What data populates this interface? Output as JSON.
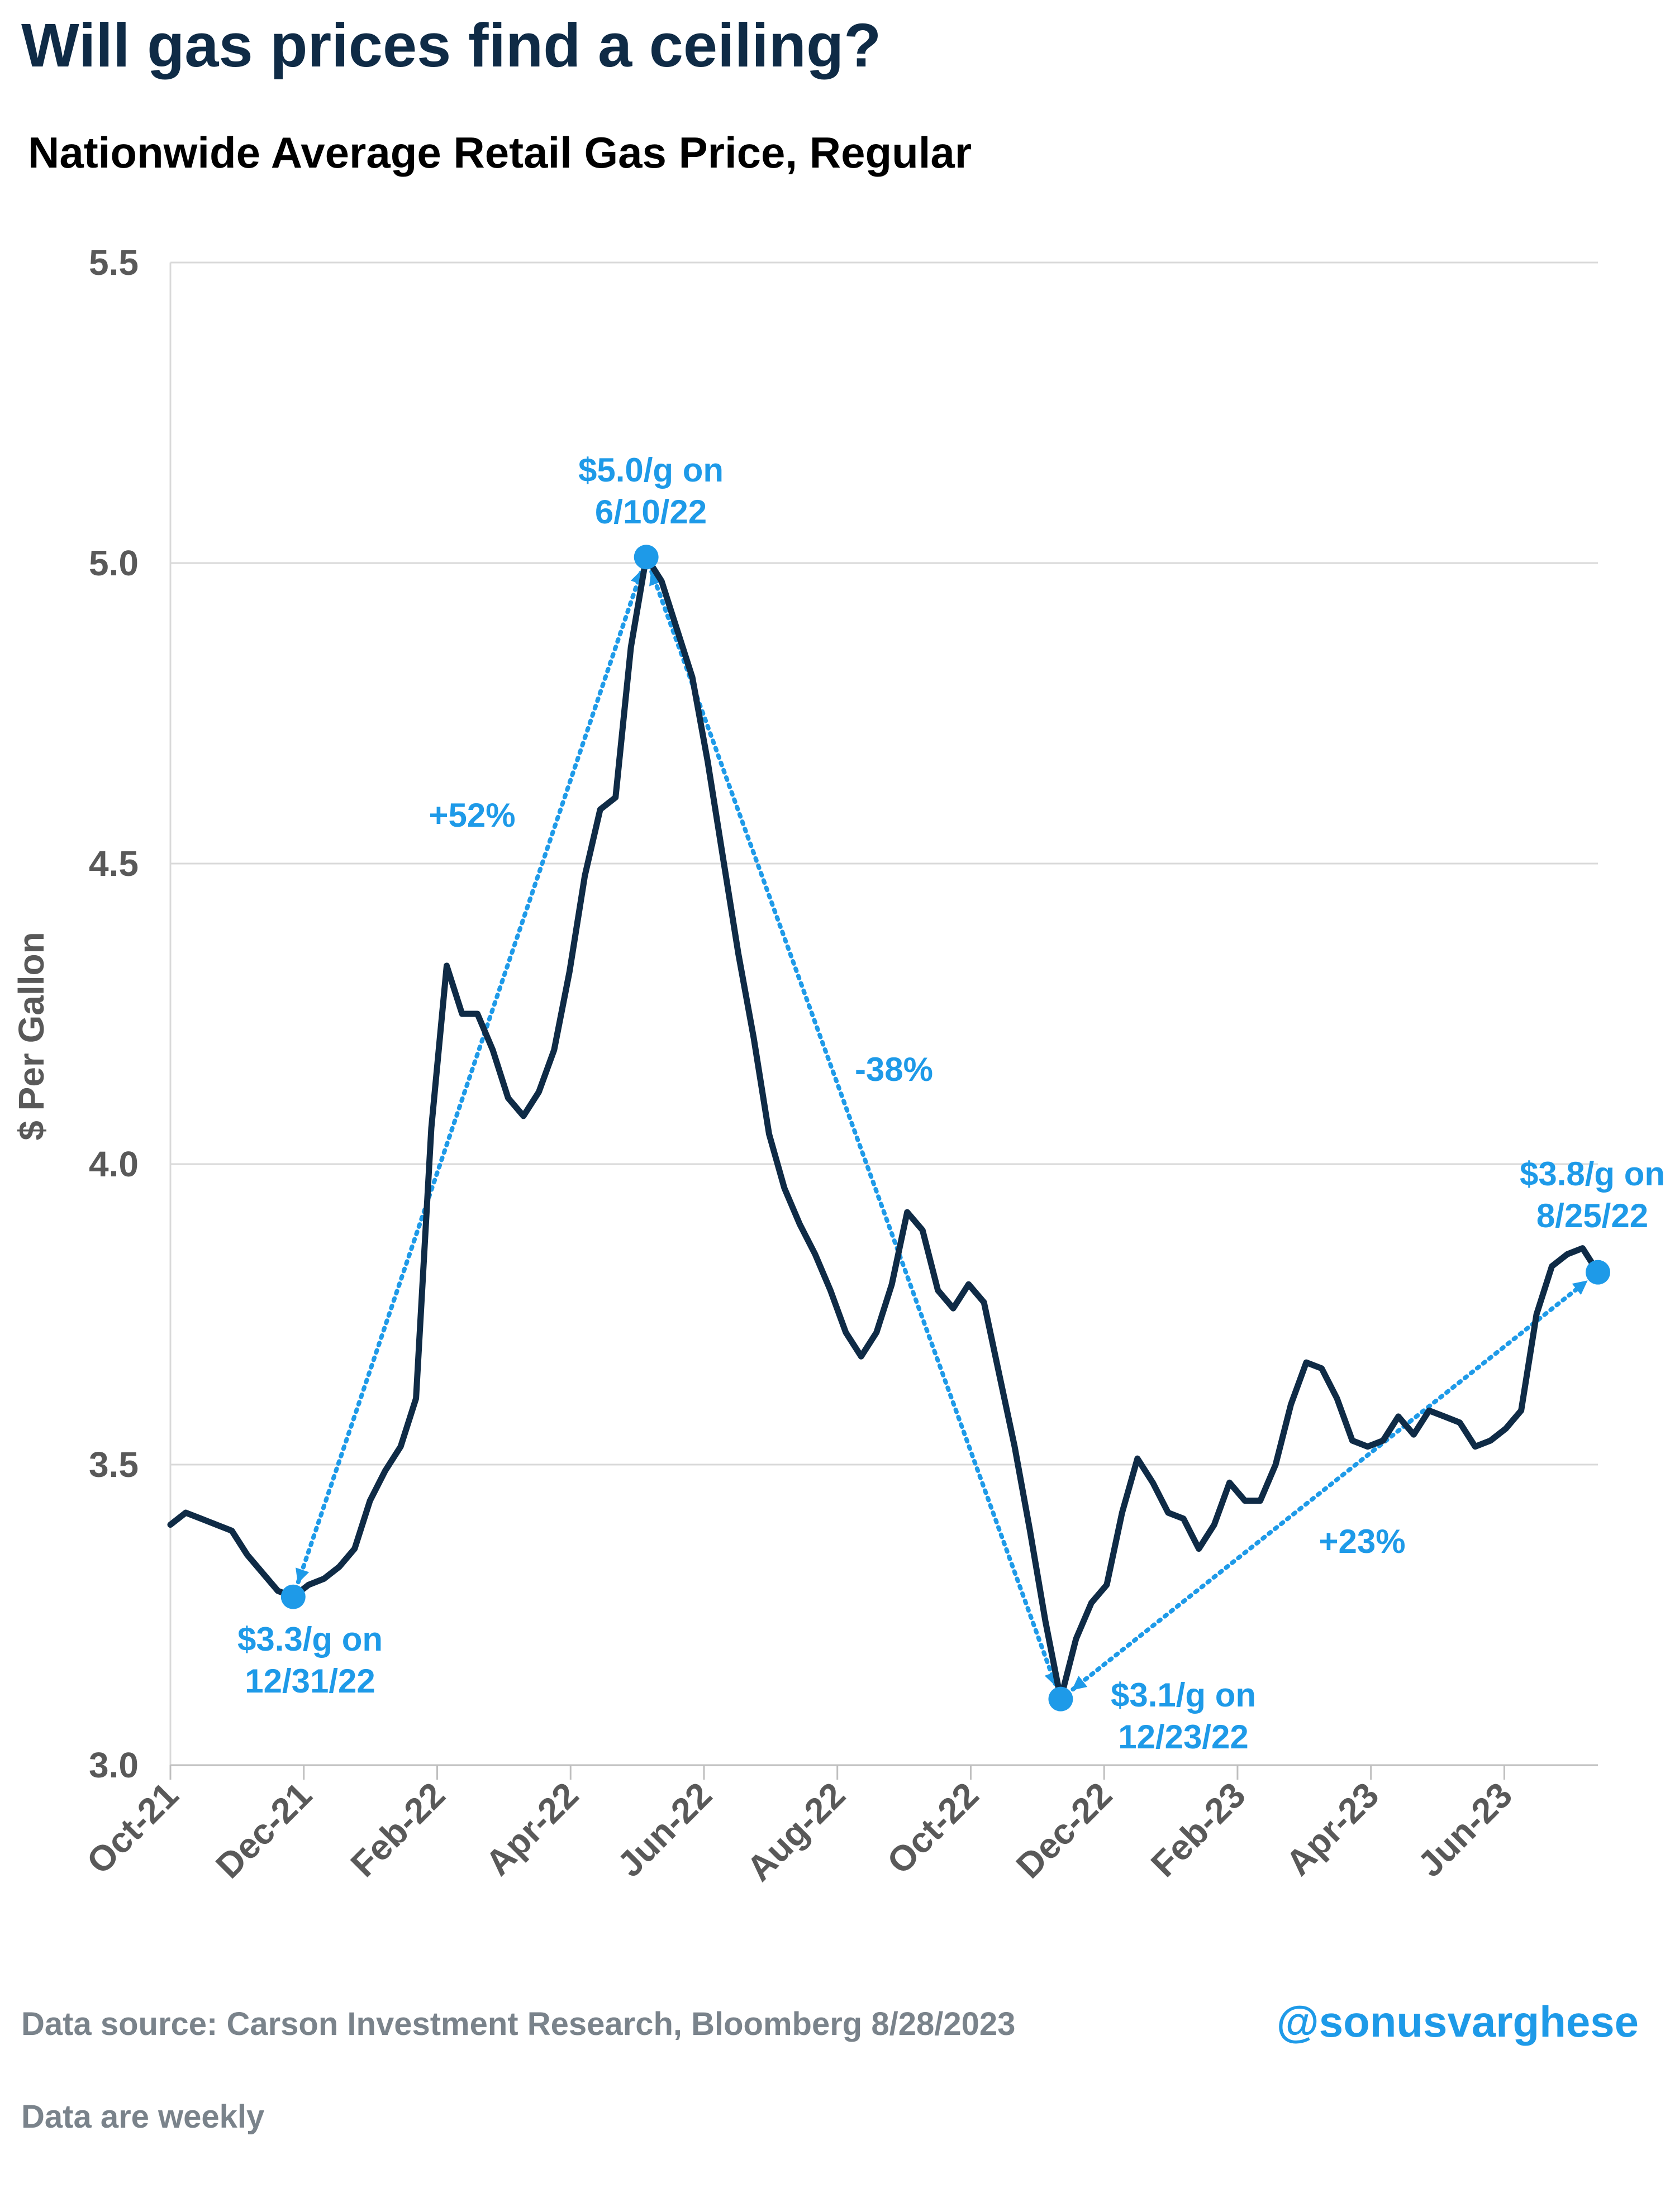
{
  "title": "Will gas prices find a ceiling?",
  "subtitle": "Nationwide Average Retail Gas Price, Regular",
  "footer": {
    "source": "Data source: Carson Investment Research, Bloomberg   8/28/2023",
    "note": "Data are weekly",
    "handle": "@sonusvarghese"
  },
  "colors": {
    "line": "#0f2b46",
    "accent": "#1e9ae8",
    "grid": "#d9d9d9",
    "axis_text": "#595959"
  },
  "chart_data": {
    "type": "line",
    "ylabel": "$ Per Gallon",
    "ylim": [
      3.0,
      5.5
    ],
    "yticks": [
      "3.0",
      "3.5",
      "4.0",
      "4.5",
      "5.0",
      "5.5"
    ],
    "xticks": [
      "Oct-21",
      "Dec-21",
      "Feb-22",
      "Apr-22",
      "Jun-22",
      "Aug-22",
      "Oct-22",
      "Dec-22",
      "Feb-23",
      "Apr-23",
      "Jun-23"
    ],
    "grid": true,
    "series": [
      {
        "values": [
          3.4,
          3.42,
          3.41,
          3.4,
          3.39,
          3.35,
          3.32,
          3.29,
          3.28,
          3.3,
          3.31,
          3.33,
          3.36,
          3.44,
          3.49,
          3.53,
          3.61,
          4.06,
          4.33,
          4.25,
          4.25,
          4.19,
          4.11,
          4.08,
          4.12,
          4.19,
          4.32,
          4.48,
          4.59,
          4.61,
          4.86,
          5.01,
          4.97,
          4.89,
          4.81,
          4.67,
          4.51,
          4.35,
          4.21,
          4.05,
          3.96,
          3.9,
          3.85,
          3.79,
          3.72,
          3.68,
          3.72,
          3.8,
          3.92,
          3.89,
          3.79,
          3.76,
          3.8,
          3.77,
          3.65,
          3.53,
          3.39,
          3.24,
          3.11,
          3.21,
          3.27,
          3.3,
          3.42,
          3.51,
          3.47,
          3.42,
          3.41,
          3.36,
          3.4,
          3.47,
          3.44,
          3.44,
          3.5,
          3.6,
          3.67,
          3.66,
          3.61,
          3.54,
          3.53,
          3.54,
          3.58,
          3.55,
          3.59,
          3.58,
          3.57,
          3.53,
          3.54,
          3.56,
          3.59,
          3.75,
          3.83,
          3.85,
          3.86,
          3.82
        ]
      }
    ],
    "markers": [
      {
        "index": 8,
        "value": 3.28,
        "label_line1": "$3.3/g on",
        "label_line2": "12/31/22"
      },
      {
        "index": 31,
        "value": 5.01,
        "label_line1": "$5.0/g on",
        "label_line2": "6/10/22"
      },
      {
        "index": 58,
        "value": 3.11,
        "label_line1": "$3.1/g on",
        "label_line2": "12/23/22"
      },
      {
        "index": 93,
        "value": 3.82,
        "label_line1": "$3.8/g on",
        "label_line2": "8/25/22"
      }
    ],
    "changes": [
      "+52%",
      "-38%",
      "+23%"
    ]
  }
}
